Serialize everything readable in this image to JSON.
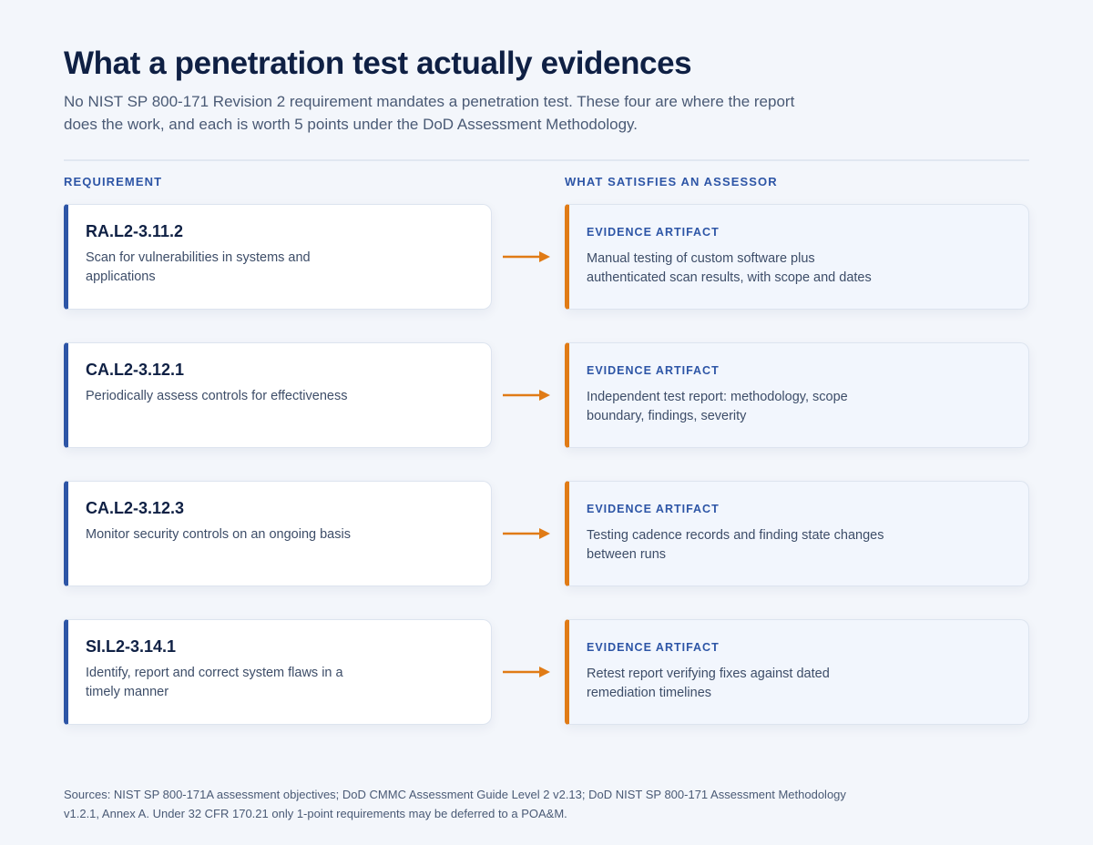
{
  "header": {
    "title": "What a penetration test actually evidences",
    "subtitle": "No NIST SP 800-171 Revision 2 requirement mandates a penetration test. These four are where the report does the work, and each is worth 5 points under the DoD Assessment Methodology."
  },
  "columns": {
    "left": "REQUIREMENT",
    "right": "WHAT SATISFIES AN ASSESSOR"
  },
  "rows": [
    {
      "id": "RA.L2-3.11.2",
      "description": "Scan for vulnerabilities in systems and applications",
      "evidence_label": "EVIDENCE ARTIFACT",
      "evidence": "Manual testing of custom software plus authenticated scan results, with scope and dates"
    },
    {
      "id": "CA.L2-3.12.1",
      "description": "Periodically assess controls for effectiveness",
      "evidence_label": "EVIDENCE ARTIFACT",
      "evidence": "Independent test report: methodology, scope boundary, findings, severity"
    },
    {
      "id": "CA.L2-3.12.3",
      "description": "Monitor security controls on an ongoing basis",
      "evidence_label": "EVIDENCE ARTIFACT",
      "evidence": "Testing cadence records and finding state changes between runs"
    },
    {
      "id": "SI.L2-3.14.1",
      "description": "Identify, report and correct system flaws in a timely manner",
      "evidence_label": "EVIDENCE ARTIFACT",
      "evidence": "Retest report verifying fixes against dated remediation timelines"
    }
  ],
  "footer": {
    "sources": "Sources: NIST SP 800-171A assessment objectives; DoD CMMC Assessment Guide Level 2 v2.13; DoD NIST SP 800-171 Assessment Methodology v1.2.1, Annex A. Under 32 CFR 170.21 only 1-point requirements may be deferred to a POA&M."
  },
  "colors": {
    "requirement_accent": "#2d55a6",
    "evidence_accent": "#e07b16",
    "arrow": "#e07b16"
  },
  "icons": {
    "connector": "arrow-right-icon"
  }
}
